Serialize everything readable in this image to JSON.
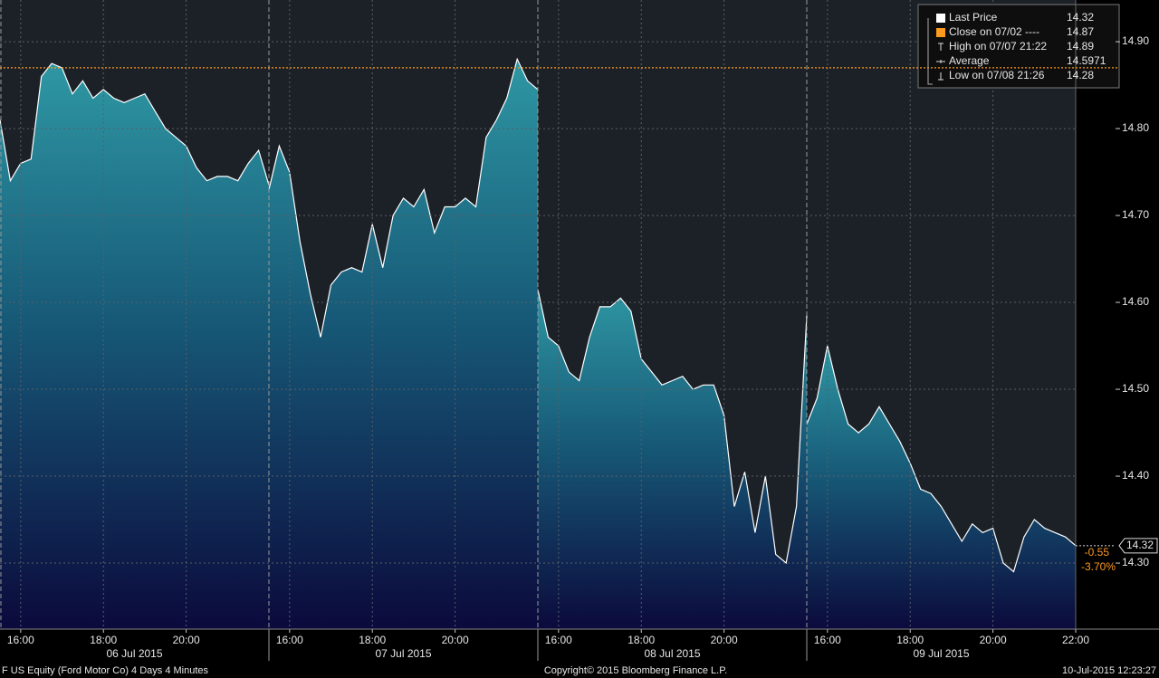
{
  "chart_data": {
    "type": "area",
    "xlim": [
      "15:30",
      "22:00"
    ],
    "ylim": [
      14.224,
      14.948
    ],
    "yticks": [
      {
        "value": 14.3,
        "label": "14.30"
      },
      {
        "value": 14.4,
        "label": "14.40"
      },
      {
        "value": 14.5,
        "label": "14.50"
      },
      {
        "value": 14.6,
        "label": "14.60"
      },
      {
        "value": 14.7,
        "label": "14.70"
      },
      {
        "value": 14.8,
        "label": "14.80"
      },
      {
        "value": 14.9,
        "label": "14.90"
      }
    ],
    "grid": true,
    "line_color": "#ffffff",
    "close_color": "#ff9a1f",
    "legend": [
      {
        "name": "Last Price",
        "value": 14.32
      },
      {
        "name": "Close on 07/02 ----",
        "value": 14.87
      },
      {
        "name": "High on 07/07 21:22",
        "value": 14.89
      },
      {
        "name": "Average",
        "value": 14.5971
      },
      {
        "name": "Low on 07/08 21:26",
        "value": 14.28
      }
    ],
    "change": -0.55,
    "change_pct": {
      "value": -3.7,
      "label": "-3.70%"
    },
    "sessions": [
      {
        "date": "06 Jul 2015",
        "xticks": [
          "16:00",
          "18:00",
          "20:00"
        ],
        "x": [
          "15:30",
          "15:45",
          "16:00",
          "16:15",
          "16:30",
          "16:45",
          "17:00",
          "17:15",
          "17:30",
          "17:45",
          "18:00",
          "18:15",
          "18:30",
          "18:45",
          "19:00",
          "19:15",
          "19:30",
          "19:45",
          "20:00",
          "20:15",
          "20:30",
          "20:45",
          "21:00",
          "21:15",
          "21:30",
          "21:45",
          "22:00"
        ],
        "values": [
          14.81,
          14.74,
          14.76,
          14.765,
          14.86,
          14.875,
          14.87,
          14.84,
          14.855,
          14.835,
          14.845,
          14.835,
          14.83,
          14.835,
          14.84,
          14.82,
          14.8,
          14.79,
          14.78,
          14.755,
          14.74,
          14.745,
          14.745,
          14.74,
          14.76,
          14.775,
          14.735
        ]
      },
      {
        "date": "07 Jul 2015",
        "xticks": [
          "16:00",
          "18:00",
          "20:00"
        ],
        "x": [
          "15:30",
          "15:45",
          "16:00",
          "16:15",
          "16:30",
          "16:45",
          "17:00",
          "17:15",
          "17:30",
          "17:45",
          "18:00",
          "18:15",
          "18:30",
          "18:45",
          "19:00",
          "19:15",
          "19:30",
          "19:45",
          "20:00",
          "20:15",
          "20:30",
          "20:45",
          "21:00",
          "21:15",
          "21:30",
          "21:45",
          "22:00"
        ],
        "values": [
          14.73,
          14.78,
          14.75,
          14.67,
          14.61,
          14.56,
          14.62,
          14.635,
          14.64,
          14.635,
          14.69,
          14.64,
          14.7,
          14.72,
          14.71,
          14.73,
          14.68,
          14.71,
          14.71,
          14.72,
          14.71,
          14.79,
          14.81,
          14.835,
          14.88,
          14.855,
          14.845
        ]
      },
      {
        "date": "08 Jul 2015",
        "xticks": [
          "16:00",
          "18:00",
          "20:00"
        ],
        "x": [
          "15:30",
          "15:45",
          "16:00",
          "16:15",
          "16:30",
          "16:45",
          "17:00",
          "17:15",
          "17:30",
          "17:45",
          "18:00",
          "18:15",
          "18:30",
          "18:45",
          "19:00",
          "19:15",
          "19:30",
          "19:45",
          "20:00",
          "20:15",
          "20:30",
          "20:45",
          "21:00",
          "21:15",
          "21:30",
          "21:45",
          "22:00"
        ],
        "values": [
          14.615,
          14.56,
          14.55,
          14.52,
          14.51,
          14.56,
          14.595,
          14.595,
          14.605,
          14.59,
          14.535,
          14.52,
          14.505,
          14.51,
          14.515,
          14.5,
          14.505,
          14.505,
          14.47,
          14.365,
          14.405,
          14.335,
          14.4,
          14.31,
          14.3,
          14.365,
          14.585
        ]
      },
      {
        "date": "09 Jul 2015",
        "xticks": [
          "16:00",
          "18:00",
          "20:00",
          "22:00"
        ],
        "x": [
          "15:30",
          "15:45",
          "16:00",
          "16:15",
          "16:30",
          "16:45",
          "17:00",
          "17:15",
          "17:30",
          "17:45",
          "18:00",
          "18:15",
          "18:30",
          "18:45",
          "19:00",
          "19:15",
          "19:30",
          "19:45",
          "20:00",
          "20:15",
          "20:30",
          "20:45",
          "21:00",
          "21:15",
          "21:30",
          "21:45",
          "22:00"
        ],
        "values": [
          14.46,
          14.49,
          14.55,
          14.5,
          14.46,
          14.45,
          14.46,
          14.48,
          14.46,
          14.44,
          14.415,
          14.385,
          14.38,
          14.365,
          14.345,
          14.325,
          14.345,
          14.335,
          14.34,
          14.3,
          14.29,
          14.33,
          14.35,
          14.34,
          14.335,
          14.33,
          14.32
        ]
      }
    ]
  },
  "footer": {
    "left": "F US Equity (Ford Motor Co) 4 Days 4 Minutes",
    "center": "Copyright© 2015 Bloomberg Finance L.P.",
    "right": "10-Jul-2015 12:23:27"
  }
}
